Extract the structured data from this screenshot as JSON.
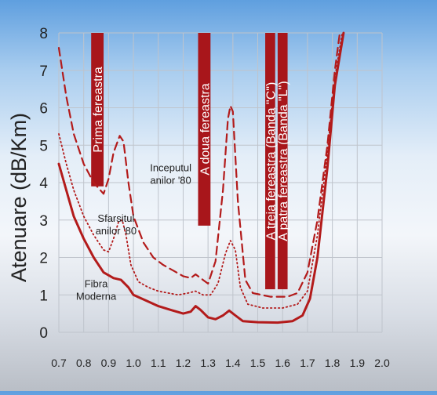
{
  "chart_data": {
    "type": "line",
    "ylabel": "Atenuare (dB/Km)",
    "xlim": [
      0.7,
      2.0
    ],
    "ylim": [
      0,
      8
    ],
    "x_ticks": [
      "0.7",
      "0.8",
      "0.9",
      "1.0",
      "1.1",
      "1.2",
      "1.3",
      "1.4",
      "1.5",
      "1.6",
      "1.7",
      "1.8",
      "1.9",
      "2.0"
    ],
    "y_ticks": [
      "0",
      "1",
      "2",
      "3",
      "4",
      "5",
      "6",
      "7",
      "8"
    ],
    "grid": true,
    "colors": {
      "curve": "#b31b1b",
      "band": "#a8161b",
      "band_text": "#ffffff",
      "grid": "#bfc4cc",
      "axis_text": "#222222"
    },
    "windows": [
      {
        "label": "Prima fereastra",
        "x_start": 0.83,
        "x_end": 0.88,
        "y_top": 8.0,
        "y_bottom": 3.9
      },
      {
        "label": "A doua fereastra",
        "x_start": 1.26,
        "x_end": 1.31,
        "y_top": 8.0,
        "y_bottom": 2.85
      },
      {
        "label": "A treia fereastra (Banda \"C\")",
        "x_start": 1.53,
        "x_end": 1.57,
        "y_top": 8.0,
        "y_bottom": 1.15
      },
      {
        "label": "A patra fereastra (Banda \"L\")",
        "x_start": 1.58,
        "x_end": 1.62,
        "y_top": 8.0,
        "y_bottom": 1.15
      }
    ],
    "series": [
      {
        "label": "Inceputul anilor '80",
        "style": "dashed",
        "points": [
          [
            0.7,
            7.6
          ],
          [
            0.73,
            6.3
          ],
          [
            0.76,
            5.3
          ],
          [
            0.8,
            4.5
          ],
          [
            0.84,
            4.0
          ],
          [
            0.88,
            3.7
          ],
          [
            0.9,
            4.1
          ],
          [
            0.92,
            4.8
          ],
          [
            0.945,
            5.25
          ],
          [
            0.96,
            5.1
          ],
          [
            0.98,
            4.0
          ],
          [
            1.0,
            3.1
          ],
          [
            1.04,
            2.4
          ],
          [
            1.08,
            2.0
          ],
          [
            1.12,
            1.8
          ],
          [
            1.16,
            1.65
          ],
          [
            1.2,
            1.5
          ],
          [
            1.23,
            1.45
          ],
          [
            1.25,
            1.55
          ],
          [
            1.27,
            1.45
          ],
          [
            1.3,
            1.3
          ],
          [
            1.33,
            1.9
          ],
          [
            1.36,
            3.8
          ],
          [
            1.38,
            5.7
          ],
          [
            1.39,
            6.05
          ],
          [
            1.4,
            5.9
          ],
          [
            1.42,
            3.5
          ],
          [
            1.45,
            1.4
          ],
          [
            1.48,
            1.05
          ],
          [
            1.55,
            0.95
          ],
          [
            1.62,
            0.95
          ],
          [
            1.66,
            1.05
          ],
          [
            1.7,
            1.6
          ],
          [
            1.74,
            3.0
          ],
          [
            1.78,
            5.0
          ],
          [
            1.81,
            7.0
          ],
          [
            1.83,
            8.0
          ]
        ]
      },
      {
        "label": "Sfarsitul anilor '80",
        "style": "dotted",
        "points": [
          [
            0.7,
            5.3
          ],
          [
            0.73,
            4.5
          ],
          [
            0.76,
            3.8
          ],
          [
            0.8,
            3.1
          ],
          [
            0.84,
            2.6
          ],
          [
            0.88,
            2.2
          ],
          [
            0.9,
            2.15
          ],
          [
            0.92,
            2.5
          ],
          [
            0.94,
            2.95
          ],
          [
            0.955,
            3.0
          ],
          [
            0.97,
            2.6
          ],
          [
            0.99,
            1.8
          ],
          [
            1.02,
            1.35
          ],
          [
            1.06,
            1.2
          ],
          [
            1.1,
            1.1
          ],
          [
            1.14,
            1.05
          ],
          [
            1.18,
            1.0
          ],
          [
            1.22,
            1.05
          ],
          [
            1.25,
            1.1
          ],
          [
            1.28,
            1.0
          ],
          [
            1.31,
            1.0
          ],
          [
            1.34,
            1.3
          ],
          [
            1.37,
            2.1
          ],
          [
            1.39,
            2.45
          ],
          [
            1.41,
            2.2
          ],
          [
            1.43,
            1.2
          ],
          [
            1.46,
            0.75
          ],
          [
            1.52,
            0.65
          ],
          [
            1.6,
            0.65
          ],
          [
            1.66,
            0.75
          ],
          [
            1.7,
            1.1
          ],
          [
            1.74,
            2.6
          ],
          [
            1.78,
            4.8
          ],
          [
            1.81,
            6.8
          ],
          [
            1.84,
            8.0
          ]
        ]
      },
      {
        "label": "Fibra Moderna",
        "style": "solid",
        "points": [
          [
            0.7,
            4.5
          ],
          [
            0.73,
            3.8
          ],
          [
            0.76,
            3.1
          ],
          [
            0.8,
            2.5
          ],
          [
            0.84,
            2.0
          ],
          [
            0.88,
            1.6
          ],
          [
            0.92,
            1.45
          ],
          [
            0.95,
            1.4
          ],
          [
            0.98,
            1.2
          ],
          [
            1.0,
            1.0
          ],
          [
            1.05,
            0.85
          ],
          [
            1.1,
            0.7
          ],
          [
            1.15,
            0.6
          ],
          [
            1.2,
            0.5
          ],
          [
            1.23,
            0.55
          ],
          [
            1.25,
            0.7
          ],
          [
            1.27,
            0.6
          ],
          [
            1.3,
            0.4
          ],
          [
            1.33,
            0.35
          ],
          [
            1.36,
            0.45
          ],
          [
            1.385,
            0.58
          ],
          [
            1.41,
            0.45
          ],
          [
            1.44,
            0.3
          ],
          [
            1.5,
            0.27
          ],
          [
            1.58,
            0.26
          ],
          [
            1.64,
            0.3
          ],
          [
            1.68,
            0.45
          ],
          [
            1.71,
            0.9
          ],
          [
            1.74,
            2.0
          ],
          [
            1.78,
            4.4
          ],
          [
            1.81,
            6.6
          ],
          [
            1.845,
            8.0
          ]
        ]
      }
    ],
    "annotations": [
      {
        "text": [
          "Inceputul",
          "anilor '80"
        ],
        "x": 1.15,
        "y": 4.3
      },
      {
        "text": [
          "Sfarsitul",
          "anilor '80"
        ],
        "x": 0.93,
        "y": 2.95
      },
      {
        "text": [
          "Fibra",
          "Moderna"
        ],
        "x": 0.85,
        "y": 1.2
      }
    ]
  }
}
